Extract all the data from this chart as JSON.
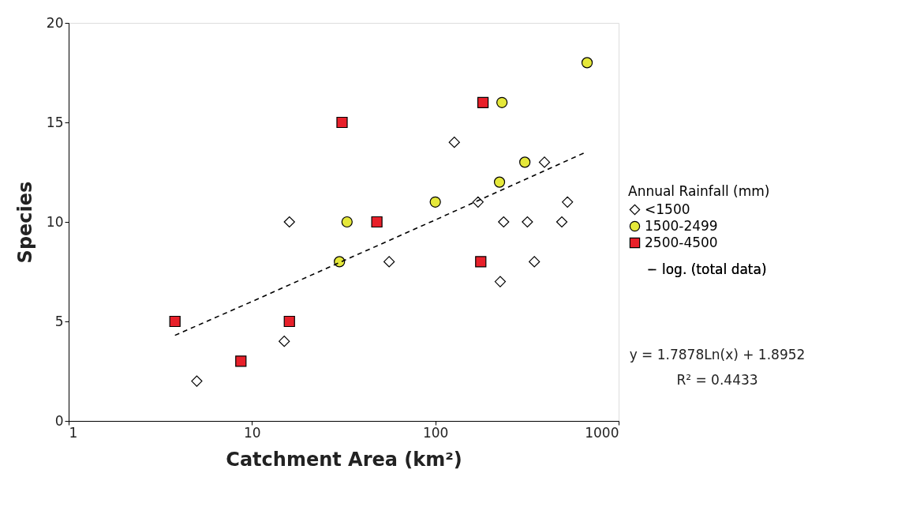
{
  "chart_data": {
    "type": "scatter",
    "xlabel": "Catchment Area (km²)",
    "ylabel": "Species",
    "legend_title": "Annual Rainfall (mm)",
    "log": "x",
    "xlim": [
      1,
      1000
    ],
    "xticks": [
      1,
      10,
      100,
      1000
    ],
    "ylim": [
      0,
      20
    ],
    "yticks": [
      0,
      5,
      10,
      15,
      20
    ],
    "grid": false,
    "legend": "right",
    "series": [
      {
        "name": "<1500",
        "type": "scatter",
        "marker": "diamond",
        "color": "#ffffff",
        "x": [
          5,
          15,
          16,
          56,
          127,
          171,
          226,
          236,
          318,
          347,
          394,
          490,
          526
        ],
        "values": [
          2,
          4,
          10,
          8,
          14,
          11,
          7,
          10,
          10,
          8,
          13,
          10,
          11
        ]
      },
      {
        "name": "1500-2499",
        "type": "scatter",
        "marker": "circle",
        "color": "#e5e83a",
        "x": [
          30,
          33,
          100,
          224,
          231,
          308,
          673
        ],
        "values": [
          8,
          10,
          11,
          12,
          16,
          13,
          18
        ]
      },
      {
        "name": "2500-4500",
        "type": "scatter",
        "marker": "square",
        "color": "#e8202a",
        "x": [
          3.8,
          8.7,
          16,
          31,
          48,
          177,
          182
        ],
        "values": [
          5,
          3,
          5,
          15,
          10,
          8,
          16
        ]
      },
      {
        "name": "log. (total data)",
        "type": "line",
        "line_style": "dashed",
        "color": "#000000",
        "x": [
          3.8,
          10,
          100,
          660
        ],
        "values": [
          4.3,
          6.0,
          10.1,
          13.5
        ]
      }
    ],
    "annotations": [
      "y = 1.7878Ln(x) + 1.8952",
      "R² = 0.4433"
    ]
  }
}
